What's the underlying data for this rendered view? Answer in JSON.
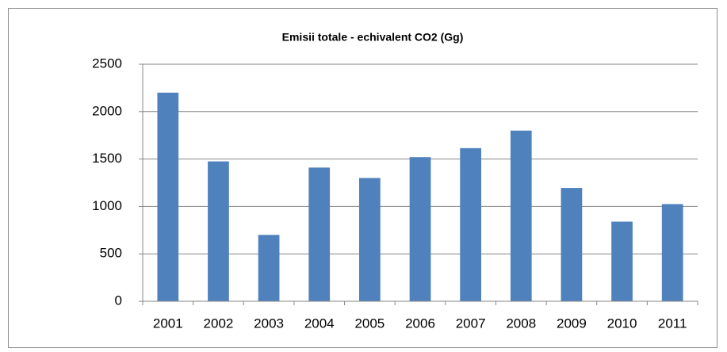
{
  "chart_data": {
    "type": "bar",
    "title": "Emisii totale - echivalent CO2 (Gg)",
    "categories": [
      "2001",
      "2002",
      "2003",
      "2004",
      "2005",
      "2006",
      "2007",
      "2008",
      "2009",
      "2010",
      "2011"
    ],
    "values": [
      2200,
      1475,
      700,
      1410,
      1300,
      1520,
      1615,
      1800,
      1195,
      840,
      1025
    ],
    "color": "#4f81bd",
    "ylim": [
      0,
      2500
    ],
    "yticks": [
      0,
      500,
      1000,
      1500,
      2000,
      2500
    ],
    "grid": true
  }
}
